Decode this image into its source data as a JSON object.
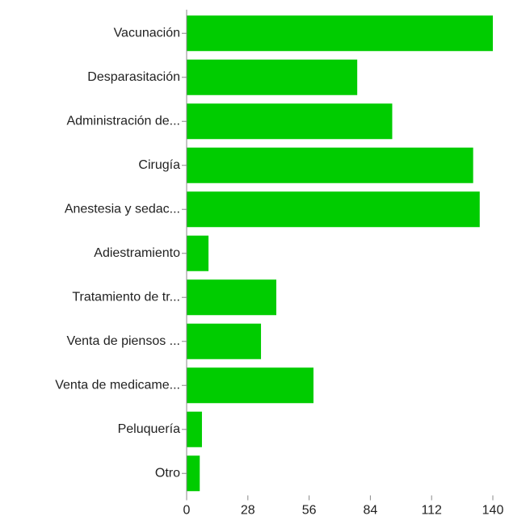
{
  "chart_data": {
    "type": "bar",
    "orientation": "horizontal",
    "categories": [
      "Vacunación",
      "Desparasitación",
      "Administración de...",
      "Cirugía",
      "Anestesia y sedac...",
      "Adiestramiento",
      "Tratamiento de tr...",
      "Venta de piensos ...",
      "Venta de medicame...",
      "Peluquería",
      "Otro"
    ],
    "values": [
      140,
      78,
      94,
      131,
      134,
      10,
      41,
      34,
      58,
      7,
      6
    ],
    "color": "#00cc00",
    "xlim": [
      0,
      140
    ],
    "xticks": [
      0,
      28,
      56,
      84,
      112,
      140
    ],
    "grid": false
  }
}
